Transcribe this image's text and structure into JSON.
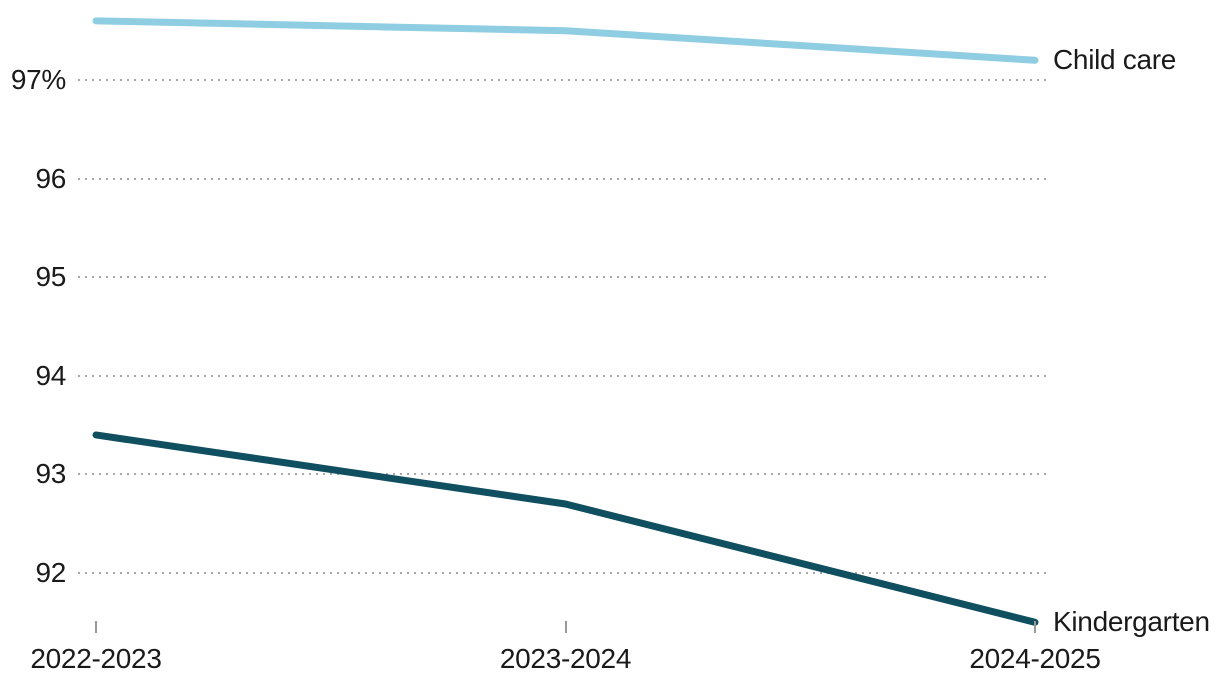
{
  "chart_data": {
    "type": "line",
    "title": "",
    "x_categories": [
      "2022-2023",
      "2023-2024",
      "2024-2025"
    ],
    "series": [
      {
        "name": "Child care",
        "color": "#8fcde2",
        "values": [
          97.6,
          97.5,
          97.2
        ]
      },
      {
        "name": "Kindergarten",
        "color": "#0f4f5f",
        "values": [
          93.4,
          92.7,
          91.5
        ]
      }
    ],
    "y_ticks": [
      {
        "value": 97,
        "label": "97%"
      },
      {
        "value": 96,
        "label": "96"
      },
      {
        "value": 95,
        "label": "95"
      },
      {
        "value": 94,
        "label": "94"
      },
      {
        "value": 93,
        "label": "93"
      },
      {
        "value": 92,
        "label": "92"
      }
    ],
    "ylim": [
      91.3,
      97.8
    ],
    "unit": "%",
    "grid": "horizontal-dotted",
    "legend_position": "end-of-line-labels"
  },
  "colors": {
    "background": "#ffffff",
    "grid": "#a8a8a8",
    "tick": "#9a9a9a",
    "text": "#1a1a1a"
  }
}
